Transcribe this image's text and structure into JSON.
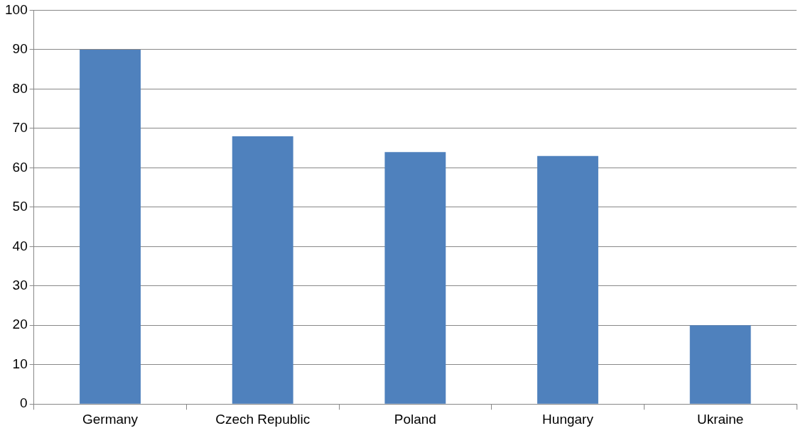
{
  "chart_data": {
    "type": "bar",
    "categories": [
      "Germany",
      "Czech Republic",
      "Poland",
      "Hungary",
      "Ukraine"
    ],
    "values": [
      90,
      68,
      64,
      63,
      20
    ],
    "color": "#4f81bd",
    "ylim": [
      0,
      100
    ],
    "yticks": [
      0,
      10,
      20,
      30,
      40,
      50,
      60,
      70,
      80,
      90,
      100
    ],
    "grid": "y",
    "legend": false
  }
}
